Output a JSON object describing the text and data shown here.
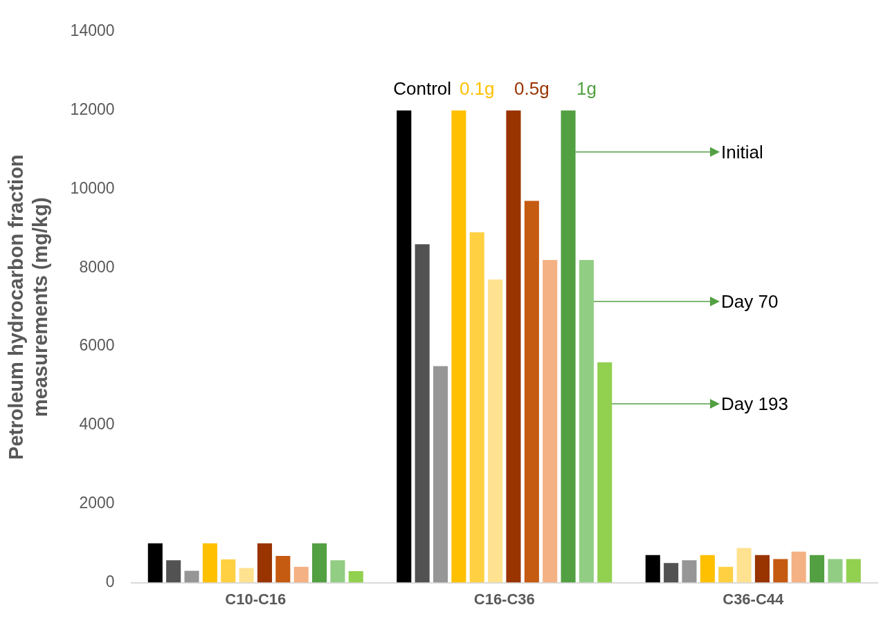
{
  "chart_data": {
    "type": "bar",
    "ylabel": "Petroleum hydrocarbon fraction measurements (mg/kg)",
    "categories": [
      "C10-C16",
      "C16-C36",
      "C36-C44"
    ],
    "series": [
      {
        "color": "#000000",
        "values": [
          1000,
          12000,
          700
        ]
      },
      {
        "color": "#525252",
        "values": [
          570,
          8600,
          500
        ]
      },
      {
        "color": "#969696",
        "values": [
          300,
          5500,
          570
        ]
      },
      {
        "color": "#ffc000",
        "values": [
          1000,
          12000,
          700
        ]
      },
      {
        "color": "#ffd042",
        "values": [
          590,
          8900,
          400
        ]
      },
      {
        "color": "#ffe28f",
        "values": [
          370,
          7700,
          880
        ]
      },
      {
        "color": "#993300",
        "values": [
          1000,
          12000,
          700
        ]
      },
      {
        "color": "#c55a11",
        "values": [
          680,
          9700,
          600
        ]
      },
      {
        "color": "#f4b183",
        "values": [
          400,
          8200,
          790
        ]
      },
      {
        "color": "#52a042",
        "values": [
          1000,
          12000,
          700
        ]
      },
      {
        "color": "#92cd84",
        "values": [
          570,
          8200,
          600
        ]
      },
      {
        "color": "#92d050",
        "values": [
          290,
          5600,
          600
        ]
      }
    ],
    "annotations": [
      "Control",
      "0.1g",
      "0.5g",
      "1g",
      "Initial",
      "Day 70",
      "Day 193"
    ],
    "ylim": [
      0,
      14000
    ],
    "yticks": [
      0,
      2000,
      4000,
      6000,
      8000,
      10000,
      12000,
      14000
    ],
    "grid": false,
    "legend": false
  }
}
